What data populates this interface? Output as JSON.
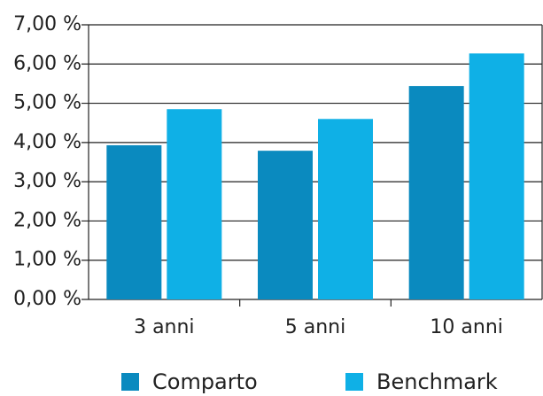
{
  "chart_data": {
    "type": "bar",
    "categories": [
      "3 anni",
      "5 anni",
      "10 anni"
    ],
    "series": [
      {
        "name": "Comparto",
        "color": "#0a8abf",
        "values": [
          3.93,
          3.79,
          5.44
        ]
      },
      {
        "name": "Benchmark",
        "color": "#0fb0e6",
        "values": [
          4.85,
          4.6,
          6.27
        ]
      }
    ],
    "ylim": [
      0,
      7
    ],
    "yticks": [
      {
        "value": 0,
        "label": "0,00 %"
      },
      {
        "value": 1,
        "label": "1,00 %"
      },
      {
        "value": 2,
        "label": "2,00 %"
      },
      {
        "value": 3,
        "label": "3,00 %"
      },
      {
        "value": 4,
        "label": "4,00 %"
      },
      {
        "value": 5,
        "label": "5,00 %"
      },
      {
        "value": 6,
        "label": "6,00 %"
      },
      {
        "value": 7,
        "label": "7,00 %"
      }
    ],
    "grid": true,
    "legend": "bottom"
  }
}
